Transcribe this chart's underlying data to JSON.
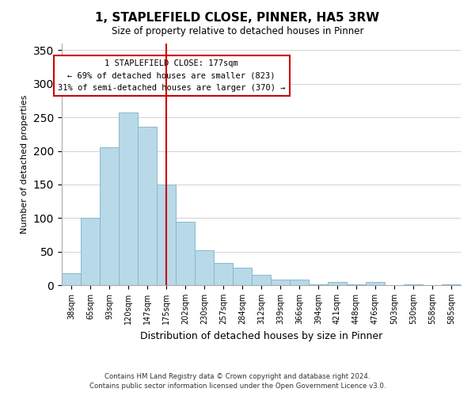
{
  "title": "1, STAPLEFIELD CLOSE, PINNER, HA5 3RW",
  "subtitle": "Size of property relative to detached houses in Pinner",
  "xlabel": "Distribution of detached houses by size in Pinner",
  "ylabel": "Number of detached properties",
  "bar_labels": [
    "38sqm",
    "65sqm",
    "93sqm",
    "120sqm",
    "147sqm",
    "175sqm",
    "202sqm",
    "230sqm",
    "257sqm",
    "284sqm",
    "312sqm",
    "339sqm",
    "366sqm",
    "394sqm",
    "421sqm",
    "448sqm",
    "476sqm",
    "503sqm",
    "530sqm",
    "558sqm",
    "585sqm"
  ],
  "bar_values": [
    18,
    100,
    205,
    257,
    236,
    150,
    95,
    52,
    33,
    26,
    15,
    8,
    8,
    1,
    5,
    1,
    5,
    0,
    1,
    0,
    1
  ],
  "bar_color": "#b8d9e8",
  "bar_edge_color": "#8ab8ce",
  "vline_index": 5,
  "vline_color": "#cc0000",
  "ylim": [
    0,
    360
  ],
  "yticks": [
    0,
    50,
    100,
    150,
    200,
    250,
    300,
    350
  ],
  "annotation_title": "1 STAPLEFIELD CLOSE: 177sqm",
  "annotation_line1": "← 69% of detached houses are smaller (823)",
  "annotation_line2": "31% of semi-detached houses are larger (370) →",
  "annotation_box_color": "#ffffff",
  "annotation_box_edge": "#cc0000",
  "footer1": "Contains HM Land Registry data © Crown copyright and database right 2024.",
  "footer2": "Contains public sector information licensed under the Open Government Licence v3.0.",
  "background_color": "#ffffff",
  "grid_color": "#cccccc"
}
